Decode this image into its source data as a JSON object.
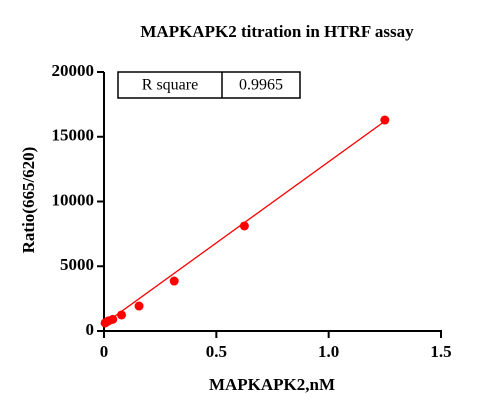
{
  "chart_data": {
    "type": "scatter",
    "title": "MAPKAPK2 titration in HTRF assay",
    "x_label": "MAPKAPK2,nM",
    "y_label": "Ratio(665/620)",
    "xlim": [
      0,
      1.5
    ],
    "ylim": [
      0,
      20000
    ],
    "xticks": [
      0,
      0.5,
      {
        "value": 1,
        "label": "1.0"
      },
      1.5
    ],
    "yticks": [
      0,
      5000,
      10000,
      15000,
      20000
    ],
    "color": "#ff0000",
    "x": [
      1.25,
      0.625,
      0.3125,
      0.156,
      0.078,
      0.039,
      0.0195,
      0.0098,
      0.0049
    ],
    "values": [
      16290,
      8110,
      3860,
      1930,
      1240,
      900,
      780,
      680,
      620
    ],
    "fit_line": {
      "x": [
        0,
        1.25
      ],
      "values": [
        540,
        16200
      ]
    },
    "annotation": {
      "label": "R square",
      "value": "0.9965"
    }
  }
}
